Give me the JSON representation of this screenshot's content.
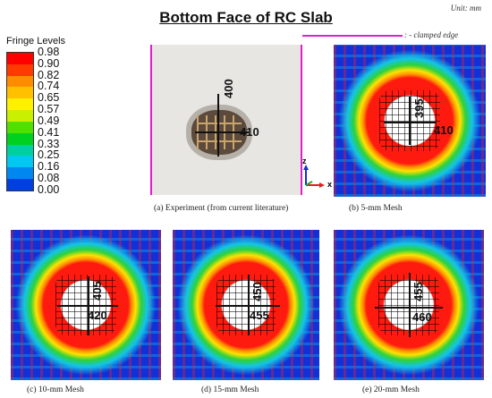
{
  "header": {
    "title": "Bottom Face of RC Slab",
    "unit": "Unit: mm",
    "clamped_edge_label": ": - clamped edge",
    "clamped_edge_color": "#e020c8"
  },
  "legend": {
    "title": "Fringe Levels",
    "levels": [
      "0.98",
      "0.90",
      "0.82",
      "0.74",
      "0.65",
      "0.57",
      "0.49",
      "0.41",
      "0.33",
      "0.25",
      "0.16",
      "0.08",
      "0.00"
    ],
    "colors": [
      "#ff0000",
      "#ff3a00",
      "#ff8c00",
      "#ffc000",
      "#fff000",
      "#c8f000",
      "#50e000",
      "#00d020",
      "#00d0a0",
      "#00c8f0",
      "#0088f0",
      "#0040e0",
      "#0000c8"
    ]
  },
  "axes": {
    "z": "z",
    "x": "x"
  },
  "panels": {
    "experiment": {
      "caption": "(a) Experiment (from current literature)",
      "vertical_dim": "400",
      "horizontal_dim": "410"
    },
    "mesh5": {
      "caption": "(b) 5-mm Mesh",
      "vertical_dim": "395",
      "horizontal_dim": "410"
    },
    "mesh10": {
      "caption": "(c) 10-mm Mesh",
      "vertical_dim": "405",
      "horizontal_dim": "420"
    },
    "mesh15": {
      "caption": "(d) 15-mm Mesh",
      "vertical_dim": "450",
      "horizontal_dim": "455"
    },
    "mesh20": {
      "caption": "(e) 20-mm Mesh",
      "vertical_dim": "455",
      "horizontal_dim": "460"
    }
  }
}
